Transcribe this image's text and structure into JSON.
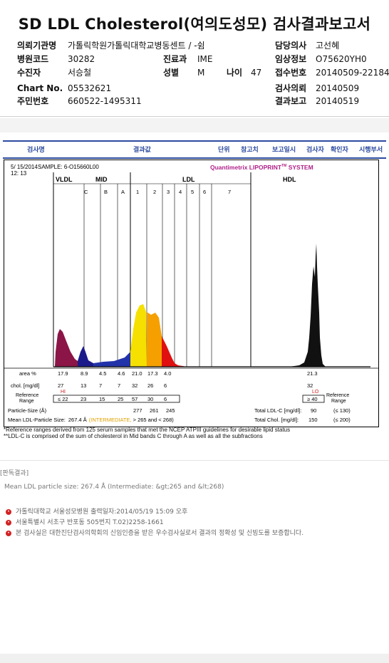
{
  "title": "SD LDL Cholesterol(여의도성모) 검사결과보고서",
  "info": {
    "institution_label": "의뢰기관명",
    "institution_value": "가톨릭학원가톨릭대학교병동센트 / -쉼",
    "doctor_label": "담당의사",
    "doctor_value": "고선혜",
    "hospital_code_label": "병원코드",
    "hospital_code_value": "30282",
    "dept_label": "진료과",
    "dept_value": "IME",
    "clinical_label": "임상정보",
    "clinical_value": "O75620YH0",
    "patient_label": "수진자",
    "patient_value": "서승철",
    "sex_label": "성별",
    "sex_value": "M",
    "age_label": "나이",
    "age_value": "47",
    "receipt_label": "접수번호",
    "receipt_value": "20140509-22184",
    "chart_label": "Chart No.",
    "chart_value": "05532621",
    "request_label": "검사의뢰",
    "request_value": "20140509",
    "id_label": "주민번호",
    "id_value": "660522-1495311",
    "report_label": "결과보고",
    "report_value": "20140519"
  },
  "table_header": [
    "검사명",
    "결과값",
    "단위",
    "참고치",
    "보고일시",
    "검사자",
    "확인자",
    "시행부서"
  ],
  "report": {
    "date": "5/ 15/2014",
    "time": "12: 13",
    "sample": "SAMPLE:    6-O15660L00",
    "brand": "Quantimetrix LIPOPRINT",
    "brand_tm": "TM",
    "brand_suffix": " SYSTEM",
    "band_groups": [
      "VLDL",
      "MID",
      "LDL",
      "HDL"
    ],
    "band_labels": [
      "C",
      "B",
      "A",
      "1",
      "2",
      "3",
      "4",
      "5",
      "6",
      "7"
    ],
    "area_label": "area %",
    "chol_label": "chol. [mg/dl]",
    "ref_label": "Reference Range",
    "ref_label2": "Reference Range",
    "area_values": [
      "17.9",
      "8.9",
      "4.5",
      "4.6",
      "21.0",
      "17.3",
      "4.0",
      "21.3"
    ],
    "chol_values": [
      "27",
      "13",
      "7",
      "7",
      "32",
      "26",
      "6",
      "32"
    ],
    "chol_flags": [
      "HI",
      "LO"
    ],
    "ref_values": [
      "≤ 22",
      "23",
      "15",
      "25",
      "57",
      "30",
      "6",
      "≥ 40"
    ],
    "particle_label": "Particle-Size (Å)",
    "particle_values": [
      "277",
      "261",
      "245"
    ],
    "mean_size_label": "Mean LDL-Particle Size:",
    "mean_size_value": "267.4 Å",
    "mean_size_class": "(INTERMEDIATE,",
    "mean_size_suffix": "> 265 and < 268)",
    "total_ldl_label": "Total LDL-C [mg/dl]:",
    "total_ldl_value": "90",
    "total_ldl_ref": "(≤ 130)",
    "total_chol_label": "Total Chol. [mg/dl]:",
    "total_chol_value": "150",
    "total_chol_ref": "(≤ 200)"
  },
  "notes": [
    "*Reference ranges derived from 125 serum samples that met the NCEP ATPIII guidelines for desirable lipid status",
    "**LDL-C is comprised of the sum of cholesterol in Mid bands C through A as well as all the subfractions"
  ],
  "interpretation": {
    "heading": "[판독결과]",
    "text": "Mean LDL particle size: 267.4 Å (Intermediate: &gt;265 and &lt;268)"
  },
  "footer": {
    "line1": "가톨릭대학교 서울성모병원          출력일자:2014/05/19 15:09 오후",
    "line2": "서울특별시 서초구 반포동 505번지 T.02)2258-1661",
    "line3": "본 검사실은 대한진단검사의학회의 신임인증을 받은 우수검사실로서 결과의 정확성 및 신빙도를 보증합니다."
  },
  "colors": {
    "header_blue": "#2c4aa0",
    "brand_magenta": "#b0208a",
    "vldl": "#8b1546",
    "mid": "#1a1a8a",
    "ldl1": "#f5e000",
    "ldl2": "#f5a000",
    "ldl3": "#e01010",
    "hdl": "#111111"
  }
}
